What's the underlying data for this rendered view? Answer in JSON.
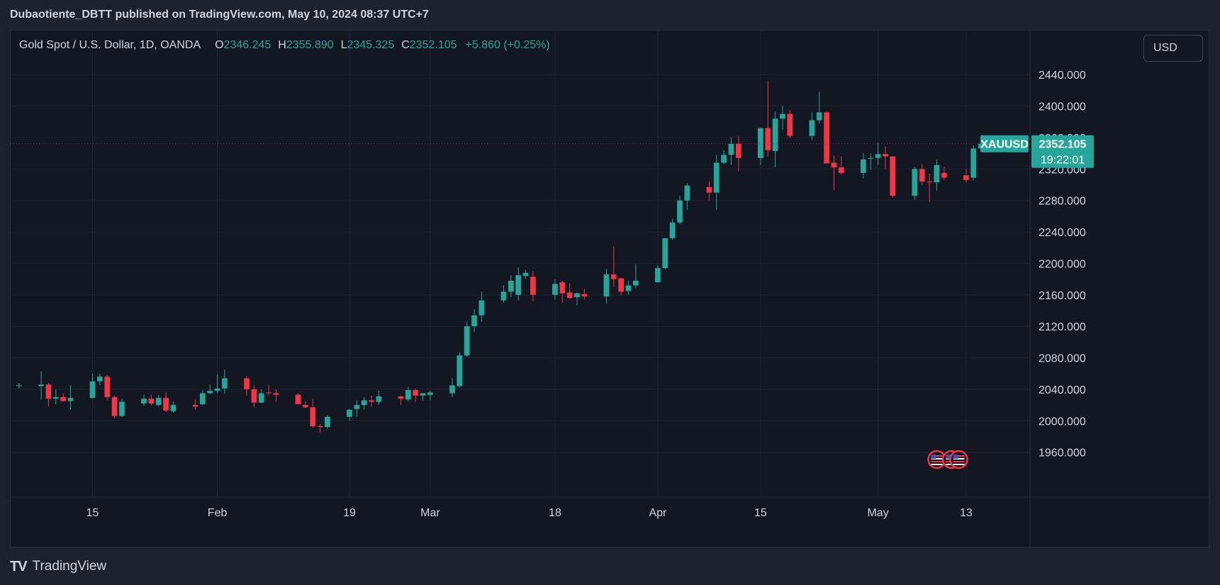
{
  "header": {
    "published_line": "Dubaotiente_DBTT published on TradingView.com, May 10, 2024 08:37 UTC+7"
  },
  "legend": {
    "symbol": "Gold Spot / U.S. Dollar, 1D, OANDA",
    "open_label": "O",
    "open": "2346.245",
    "high_label": "H",
    "high": "2355.890",
    "low_label": "L",
    "low": "2345.325",
    "close_label": "C",
    "close": "2352.105",
    "change": "+5.860 (+0.25%)"
  },
  "currency_button": "USD",
  "price_tag": {
    "ticker": "XAUUSD",
    "price": "2352.105",
    "countdown": "19:22:01"
  },
  "footer": {
    "brand": "TradingView",
    "logo_glyph": "TV"
  },
  "colors": {
    "up": "#26a69a",
    "down": "#f23645",
    "background": "#131722",
    "grid": "#1f2330",
    "price_line": "#9c27b0",
    "text": "#d1d4dc"
  },
  "chart_data": {
    "type": "candlestick",
    "symbol": "XAUUSD",
    "ylim": [
      1930,
      2460
    ],
    "y_ticks": [
      1960,
      2000,
      2040,
      2080,
      2120,
      2160,
      2200,
      2240,
      2280,
      2320,
      2360,
      2400,
      2440
    ],
    "y_tick_labels": [
      "1960.000",
      "2000.000",
      "2040.000",
      "2080.000",
      "2120.000",
      "2160.000",
      "2200.000",
      "2240.000",
      "2280.000",
      "2320.000",
      "2360.000",
      "2400.000",
      "2440.000"
    ],
    "x_ticks": [
      {
        "date": "2024-01-15",
        "label": "15"
      },
      {
        "date": "2024-02-01",
        "label": "Feb"
      },
      {
        "date": "2024-02-19",
        "label": "19"
      },
      {
        "date": "2024-03-01",
        "label": "Mar"
      },
      {
        "date": "2024-03-18",
        "label": "18"
      },
      {
        "date": "2024-04-01",
        "label": "Apr"
      },
      {
        "date": "2024-04-15",
        "label": "15"
      },
      {
        "date": "2024-05-01",
        "label": "May"
      },
      {
        "date": "2024-05-13",
        "label": "13"
      }
    ],
    "x_range": [
      "2024-01-05",
      "2024-05-19"
    ],
    "last_price": 2352.105,
    "grid": true,
    "event_markers": [
      "2024-05-09",
      "2024-05-11",
      "2024-05-12"
    ],
    "candles": [
      {
        "date": "2024-01-05",
        "o": 2044.0,
        "h": 2048.0,
        "l": 2041.0,
        "c": 2045.0
      },
      {
        "date": "2024-01-08",
        "o": 2044.0,
        "h": 2063.0,
        "l": 2027.0,
        "c": 2046.0
      },
      {
        "date": "2024-01-09",
        "o": 2046.0,
        "h": 2048.0,
        "l": 2018.0,
        "c": 2028.0
      },
      {
        "date": "2024-01-10",
        "o": 2028.0,
        "h": 2040.0,
        "l": 2021.0,
        "c": 2030.0
      },
      {
        "date": "2024-01-11",
        "o": 2030.0,
        "h": 2035.0,
        "l": 2024.0,
        "c": 2025.0
      },
      {
        "date": "2024-01-12",
        "o": 2025.0,
        "h": 2045.0,
        "l": 2014.0,
        "c": 2029.0
      },
      {
        "date": "2024-01-15",
        "o": 2029.0,
        "h": 2060.0,
        "l": 2028.0,
        "c": 2050.0
      },
      {
        "date": "2024-01-16",
        "o": 2050.0,
        "h": 2060.0,
        "l": 2045.0,
        "c": 2056.0
      },
      {
        "date": "2024-01-17",
        "o": 2056.0,
        "h": 2058.0,
        "l": 2026.0,
        "c": 2030.0
      },
      {
        "date": "2024-01-18",
        "o": 2030.0,
        "h": 2032.0,
        "l": 2003.0,
        "c": 2006.0
      },
      {
        "date": "2024-01-19",
        "o": 2006.0,
        "h": 2028.0,
        "l": 2005.0,
        "c": 2024.0
      },
      {
        "date": "2024-01-22",
        "o": 2022.0,
        "h": 2033.0,
        "l": 2019.0,
        "c": 2028.0
      },
      {
        "date": "2024-01-23",
        "o": 2028.0,
        "h": 2033.0,
        "l": 2020.0,
        "c": 2022.0
      },
      {
        "date": "2024-01-24",
        "o": 2020.0,
        "h": 2033.0,
        "l": 2018.0,
        "c": 2029.0
      },
      {
        "date": "2024-01-25",
        "o": 2029.0,
        "h": 2036.0,
        "l": 2011.0,
        "c": 2013.0
      },
      {
        "date": "2024-01-26",
        "o": 2012.0,
        "h": 2025.0,
        "l": 2010.0,
        "c": 2020.0
      },
      {
        "date": "2024-01-29",
        "o": 2020.0,
        "h": 2027.0,
        "l": 2014.0,
        "c": 2018.0
      },
      {
        "date": "2024-01-30",
        "o": 2021.0,
        "h": 2039.0,
        "l": 2020.0,
        "c": 2035.0
      },
      {
        "date": "2024-01-31",
        "o": 2035.0,
        "h": 2046.0,
        "l": 2034.0,
        "c": 2038.0
      },
      {
        "date": "2024-02-01",
        "o": 2038.0,
        "h": 2059.0,
        "l": 2035.0,
        "c": 2041.0
      },
      {
        "date": "2024-02-02",
        "o": 2041.0,
        "h": 2065.0,
        "l": 2034.0,
        "c": 2054.0
      },
      {
        "date": "2024-02-05",
        "o": 2054.0,
        "h": 2057.0,
        "l": 2032.0,
        "c": 2040.0
      },
      {
        "date": "2024-02-06",
        "o": 2040.0,
        "h": 2045.0,
        "l": 2017.0,
        "c": 2023.0
      },
      {
        "date": "2024-02-07",
        "o": 2023.0,
        "h": 2040.0,
        "l": 2022.0,
        "c": 2035.0
      },
      {
        "date": "2024-02-08",
        "o": 2036.0,
        "h": 2045.0,
        "l": 2032.0,
        "c": 2035.0
      },
      {
        "date": "2024-02-09",
        "o": 2035.0,
        "h": 2040.0,
        "l": 2024.0,
        "c": 2033.0
      },
      {
        "date": "2024-02-12",
        "o": 2033.0,
        "h": 2035.0,
        "l": 2021.0,
        "c": 2021.0
      },
      {
        "date": "2024-02-13",
        "o": 2020.0,
        "h": 2025.0,
        "l": 2016.0,
        "c": 2017.0
      },
      {
        "date": "2024-02-14",
        "o": 2017.0,
        "h": 2028.0,
        "l": 1991.0,
        "c": 1993.0
      },
      {
        "date": "2024-02-15",
        "o": 1993.0,
        "h": 1996.0,
        "l": 1985.0,
        "c": 1992.0
      },
      {
        "date": "2024-02-16",
        "o": 1992.0,
        "h": 2007.0,
        "l": 1990.0,
        "c": 2005.0
      },
      {
        "date": "2024-02-19",
        "o": 2005.0,
        "h": 2015.0,
        "l": 2000.0,
        "c": 2014.0
      },
      {
        "date": "2024-02-20",
        "o": 2015.0,
        "h": 2026.0,
        "l": 2005.0,
        "c": 2020.0
      },
      {
        "date": "2024-02-21",
        "o": 2020.0,
        "h": 2030.0,
        "l": 2014.0,
        "c": 2026.0
      },
      {
        "date": "2024-02-22",
        "o": 2026.0,
        "h": 2032.0,
        "l": 2018.0,
        "c": 2024.0
      },
      {
        "date": "2024-02-23",
        "o": 2024.0,
        "h": 2038.0,
        "l": 2020.0,
        "c": 2031.0
      },
      {
        "date": "2024-02-26",
        "o": 2031.0,
        "h": 2032.0,
        "l": 2020.0,
        "c": 2028.0
      },
      {
        "date": "2024-02-27",
        "o": 2027.0,
        "h": 2043.0,
        "l": 2024.0,
        "c": 2039.0
      },
      {
        "date": "2024-02-28",
        "o": 2039.0,
        "h": 2041.0,
        "l": 2024.0,
        "c": 2032.0
      },
      {
        "date": "2024-02-29",
        "o": 2032.0,
        "h": 2034.0,
        "l": 2025.0,
        "c": 2035.0
      },
      {
        "date": "2024-03-01",
        "o": 2033.0,
        "h": 2038.0,
        "l": 2026.0,
        "c": 2036.0
      },
      {
        "date": "2024-03-04",
        "o": 2035.0,
        "h": 2054.0,
        "l": 2030.0,
        "c": 2045.0
      },
      {
        "date": "2024-03-05",
        "o": 2044.0,
        "h": 2087.0,
        "l": 2042.0,
        "c": 2083.0
      },
      {
        "date": "2024-03-06",
        "o": 2083.0,
        "h": 2126.0,
        "l": 2081.0,
        "c": 2120.0
      },
      {
        "date": "2024-03-07",
        "o": 2120.0,
        "h": 2142.0,
        "l": 2113.0,
        "c": 2134.0
      },
      {
        "date": "2024-03-08",
        "o": 2134.0,
        "h": 2164.0,
        "l": 2126.0,
        "c": 2153.0
      },
      {
        "date": "2024-03-11",
        "o": 2153.0,
        "h": 2172.0,
        "l": 2150.0,
        "c": 2164.0
      },
      {
        "date": "2024-03-12",
        "o": 2164.0,
        "h": 2185.0,
        "l": 2157.0,
        "c": 2178.0
      },
      {
        "date": "2024-03-13",
        "o": 2160.0,
        "h": 2195.0,
        "l": 2153.0,
        "c": 2185.0
      },
      {
        "date": "2024-03-14",
        "o": 2184.0,
        "h": 2192.0,
        "l": 2180.0,
        "c": 2188.0
      },
      {
        "date": "2024-03-15",
        "o": 2183.0,
        "h": 2190.0,
        "l": 2152.0,
        "c": 2160.0
      },
      {
        "date": "2024-03-18",
        "o": 2160.0,
        "h": 2180.0,
        "l": 2154.0,
        "c": 2174.0
      },
      {
        "date": "2024-03-19",
        "o": 2176.0,
        "h": 2178.0,
        "l": 2150.0,
        "c": 2162.0
      },
      {
        "date": "2024-03-20",
        "o": 2163.0,
        "h": 2175.0,
        "l": 2155.0,
        "c": 2156.0
      },
      {
        "date": "2024-03-21",
        "o": 2157.0,
        "h": 2163.0,
        "l": 2147.0,
        "c": 2162.0
      },
      {
        "date": "2024-03-22",
        "o": 2161.0,
        "h": 2168.0,
        "l": 2154.0,
        "c": 2158.0
      },
      {
        "date": "2024-03-25",
        "o": 2158.0,
        "h": 2193.0,
        "l": 2149.0,
        "c": 2186.0
      },
      {
        "date": "2024-03-26",
        "o": 2186.0,
        "h": 2222.0,
        "l": 2170.0,
        "c": 2180.0
      },
      {
        "date": "2024-03-27",
        "o": 2181.0,
        "h": 2182.0,
        "l": 2159.0,
        "c": 2164.0
      },
      {
        "date": "2024-03-28",
        "o": 2165.0,
        "h": 2178.0,
        "l": 2160.0,
        "c": 2172.0
      },
      {
        "date": "2024-03-29",
        "o": 2172.0,
        "h": 2199.0,
        "l": 2168.0,
        "c": 2178.0
      },
      {
        "date": "2024-04-01",
        "o": 2176.0,
        "h": 2198.0,
        "l": 2175.0,
        "c": 2194.0
      },
      {
        "date": "2024-04-02",
        "o": 2194.0,
        "h": 2232.0,
        "l": 2193.0,
        "c": 2232.0
      },
      {
        "date": "2024-04-03",
        "o": 2232.0,
        "h": 2257.0,
        "l": 2230.0,
        "c": 2252.0
      },
      {
        "date": "2024-04-04",
        "o": 2252.0,
        "h": 2286.0,
        "l": 2250.0,
        "c": 2280.0
      },
      {
        "date": "2024-04-05",
        "o": 2280.0,
        "h": 2302.0,
        "l": 2268.0,
        "c": 2299.0
      },
      {
        "date": "2024-04-08",
        "o": 2297.0,
        "h": 2304.0,
        "l": 2280.0,
        "c": 2290.0
      },
      {
        "date": "2024-04-09",
        "o": 2290.0,
        "h": 2338.0,
        "l": 2268.0,
        "c": 2328.0
      },
      {
        "date": "2024-04-10",
        "o": 2328.0,
        "h": 2344.0,
        "l": 2326.0,
        "c": 2338.0
      },
      {
        "date": "2024-04-11",
        "o": 2338.0,
        "h": 2360.0,
        "l": 2325.0,
        "c": 2352.0
      },
      {
        "date": "2024-04-12",
        "o": 2352.0,
        "h": 2362.0,
        "l": 2317.0,
        "c": 2334.0
      },
      {
        "date": "2024-04-15",
        "o": 2334.0,
        "h": 2367.0,
        "l": 2325.0,
        "c": 2372.0
      },
      {
        "date": "2024-04-16",
        "o": 2372.0,
        "h": 2432.0,
        "l": 2336.0,
        "c": 2344.0
      },
      {
        "date": "2024-04-17",
        "o": 2343.0,
        "h": 2393.0,
        "l": 2322.0,
        "c": 2384.0
      },
      {
        "date": "2024-04-18",
        "o": 2384.0,
        "h": 2400.0,
        "l": 2370.0,
        "c": 2390.0
      },
      {
        "date": "2024-04-19",
        "o": 2390.0,
        "h": 2395.0,
        "l": 2359.0,
        "c": 2362.0
      },
      {
        "date": "2024-04-22",
        "o": 2362.0,
        "h": 2392.0,
        "l": 2357.0,
        "c": 2382.0
      },
      {
        "date": "2024-04-23",
        "o": 2382.0,
        "h": 2418.0,
        "l": 2378.0,
        "c": 2392.0
      },
      {
        "date": "2024-04-24",
        "o": 2392.0,
        "h": 2393.0,
        "l": 2327.0,
        "c": 2327.0
      },
      {
        "date": "2024-04-25",
        "o": 2328.0,
        "h": 2337.0,
        "l": 2293.0,
        "c": 2322.0
      },
      {
        "date": "2024-04-26",
        "o": 2322.0,
        "h": 2336.0,
        "l": 2313.0,
        "c": 2315.0
      },
      {
        "date": "2024-04-29",
        "o": 2315.0,
        "h": 2340.0,
        "l": 2308.0,
        "c": 2332.0
      },
      {
        "date": "2024-04-30",
        "o": 2333.0,
        "h": 2340.0,
        "l": 2319.0,
        "c": 2334.0
      },
      {
        "date": "2024-05-01",
        "o": 2334.0,
        "h": 2353.0,
        "l": 2325.0,
        "c": 2339.0
      },
      {
        "date": "2024-05-02",
        "o": 2339.0,
        "h": 2349.0,
        "l": 2320.0,
        "c": 2336.0
      },
      {
        "date": "2024-05-03",
        "o": 2336.0,
        "h": 2334.0,
        "l": 2284.0,
        "c": 2286.0
      },
      {
        "date": "2024-05-06",
        "o": 2286.0,
        "h": 2322.0,
        "l": 2281.0,
        "c": 2320.0
      },
      {
        "date": "2024-05-07",
        "o": 2320.0,
        "h": 2326.0,
        "l": 2300.0,
        "c": 2304.0
      },
      {
        "date": "2024-05-08",
        "o": 2304.0,
        "h": 2314.0,
        "l": 2278.0,
        "c": 2303.0
      },
      {
        "date": "2024-05-09",
        "o": 2303.0,
        "h": 2332.0,
        "l": 2292.0,
        "c": 2325.0
      },
      {
        "date": "2024-05-10",
        "o": 2315.0,
        "h": 2323.0,
        "l": 2306.0,
        "c": 2309.0
      },
      {
        "date": "2024-05-13",
        "o": 2312.0,
        "h": 2320.0,
        "l": 2303.0,
        "c": 2306.0
      },
      {
        "date": "2024-05-14",
        "o": 2309.0,
        "h": 2350.0,
        "l": 2306.0,
        "c": 2346.0
      },
      {
        "date": "2024-05-15",
        "o": 2346.245,
        "h": 2355.89,
        "l": 2345.325,
        "c": 2352.105
      }
    ]
  }
}
